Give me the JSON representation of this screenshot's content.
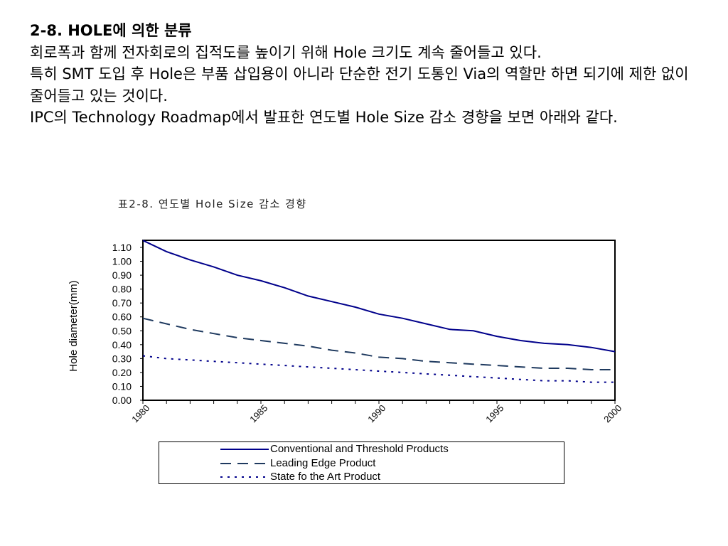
{
  "text": {
    "heading": "2-8. HOLE에 의한 분류",
    "para1": "회로폭과 함께 전자회로의 집적도를 높이기 위해 Hole 크기도 계속 줄어들고 있다.",
    "para2": " 특히 SMT 도입 후 Hole은 부품 삽입용이 아니라 단순한 전기 도통인 Via의 역할만 하면 되기에 제한 없이 줄어들고 있는 것이다.",
    "para3": "IPC의 Technology Roadmap에서 발표한 연도별 Hole Size 감소 경향을 보면 아래와 같다."
  },
  "chart_data": {
    "type": "line",
    "title": "표2-8. 연도별 Hole Size 감소 경향",
    "xlabel": "",
    "ylabel": "Hole diameter(mm)",
    "xlim": [
      1980,
      2000
    ],
    "ylim": [
      0,
      1.1
    ],
    "x_ticks": [
      "1980",
      "1985",
      "1990",
      "1995",
      "2000"
    ],
    "y_ticks": [
      "0.00",
      "0.10",
      "0.20",
      "0.30",
      "0.40",
      "0.50",
      "0.60",
      "0.70",
      "0.80",
      "0.90",
      "1.00",
      "1.10"
    ],
    "grid": false,
    "legend_position": "bottom",
    "x": [
      1980,
      1981,
      1982,
      1983,
      1984,
      1985,
      1986,
      1987,
      1988,
      1989,
      1990,
      1991,
      1992,
      1993,
      1994,
      1995,
      1996,
      1997,
      1998,
      1999,
      2000
    ],
    "series": [
      {
        "name": "Conventional and Threshold Products",
        "style": "solid",
        "color": "#00008B",
        "values": [
          1.15,
          1.07,
          1.01,
          0.96,
          0.9,
          0.86,
          0.81,
          0.75,
          0.71,
          0.67,
          0.62,
          0.59,
          0.55,
          0.51,
          0.5,
          0.46,
          0.43,
          0.41,
          0.4,
          0.38,
          0.35
        ]
      },
      {
        "name": "Leading Edge Product",
        "style": "dash",
        "color": "#1F3A5F",
        "values": [
          0.59,
          0.55,
          0.51,
          0.48,
          0.45,
          0.43,
          0.41,
          0.39,
          0.36,
          0.34,
          0.31,
          0.3,
          0.28,
          0.27,
          0.26,
          0.25,
          0.24,
          0.23,
          0.23,
          0.22,
          0.22
        ]
      },
      {
        "name": "State fo the Art Product",
        "style": "dot",
        "color": "#00008B",
        "values": [
          0.32,
          0.3,
          0.29,
          0.28,
          0.27,
          0.26,
          0.25,
          0.24,
          0.23,
          0.22,
          0.21,
          0.2,
          0.19,
          0.18,
          0.17,
          0.16,
          0.15,
          0.14,
          0.14,
          0.13,
          0.13
        ]
      }
    ]
  }
}
